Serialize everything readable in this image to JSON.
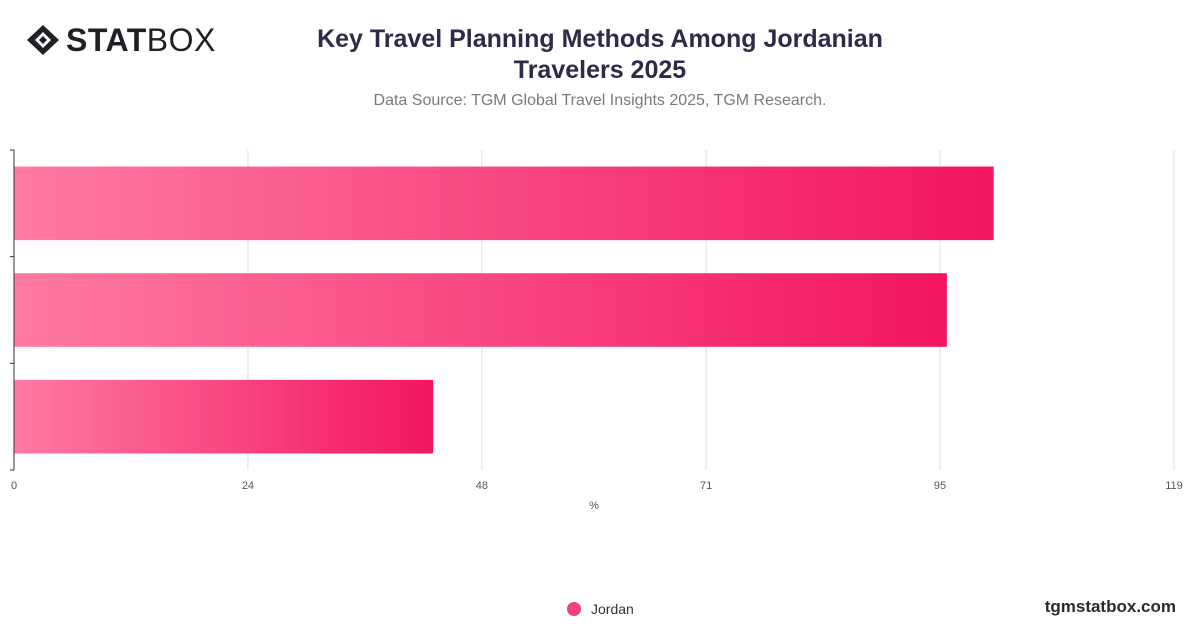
{
  "brand": {
    "bold": "STAT",
    "light": "BOX"
  },
  "title": "Key Travel Planning Methods Among Jordanian Travelers 2025",
  "subtitle": "Data Source: TGM Global Travel Insights 2025, TGM Research.",
  "legend": {
    "label": "Jordan",
    "color": "#f0417a"
  },
  "footer": "tgmstatbox.com",
  "colors": {
    "bar_start": "#ff7aa3",
    "bar_end": "#f2155f",
    "grid": "#dddddd",
    "axis": "#333333"
  },
  "chart_data": {
    "type": "bar",
    "orientation": "horizontal",
    "categories": [
      "",
      "",
      ""
    ],
    "series": [
      {
        "name": "Jordan",
        "values": [
          100.5,
          95.7,
          43
        ]
      }
    ],
    "xlabel": "%",
    "xlim": [
      0,
      119
    ],
    "xticks": [
      0,
      24,
      48,
      71,
      95,
      119
    ],
    "grid": true,
    "legend_position": "bottom"
  }
}
